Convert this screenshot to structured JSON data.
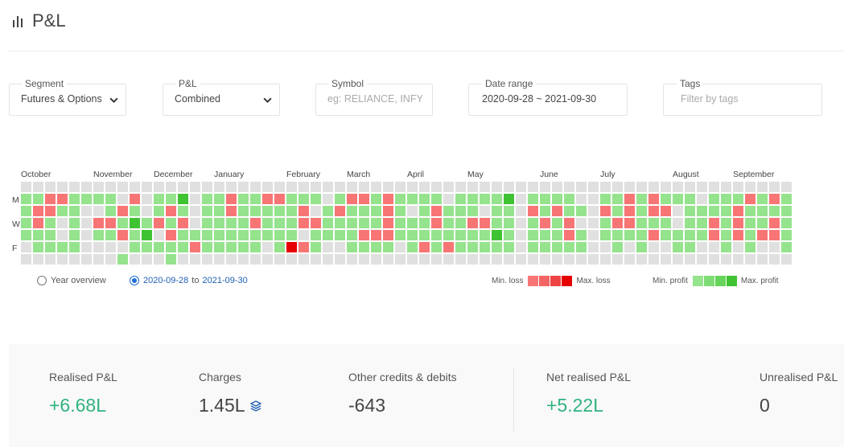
{
  "header": {
    "title": "P&L",
    "icon": "bar-chart-icon"
  },
  "filters": {
    "segment": {
      "label": "Segment",
      "value": "Futures & Options"
    },
    "pnl": {
      "label": "P&L",
      "value": "Combined"
    },
    "symbol": {
      "label": "Symbol",
      "placeholder": "eg: RELIANCE, INFY"
    },
    "date_range": {
      "label": "Date range",
      "value": "2020-09-28 ~ 2021-09-30"
    },
    "tags": {
      "label": "Tags",
      "placeholder": "Filter by tags"
    }
  },
  "calendar": {
    "months": [
      "October",
      "November",
      "December",
      "January",
      "February",
      "March",
      "April",
      "May",
      "June",
      "July",
      "August",
      "September"
    ],
    "day_labels": {
      "mon": "M",
      "wed": "W",
      "fri": "F"
    }
  },
  "view_options": {
    "year_overview": "Year overview",
    "range_start": "2020-09-28",
    "range_to": "to",
    "range_end": "2021-09-30"
  },
  "legend": {
    "min_loss": "Min. loss",
    "max_loss": "Max. loss",
    "min_profit": "Min. profit",
    "max_profit": "Max. profit",
    "loss_colors": [
      "#f87575",
      "#f36464",
      "#ee4444",
      "#e60000"
    ],
    "profit_colors": [
      "#95e38d",
      "#7fdc74",
      "#66d45a",
      "#3fc332"
    ]
  },
  "colors": {
    "positive": "#2fb37f",
    "empty_cell": "#e0e0e0",
    "accent": "#1e6fd9"
  },
  "summary": {
    "realised": {
      "label": "Realised P&L",
      "value": "+6.68L"
    },
    "charges": {
      "label": "Charges",
      "value": "1.45L",
      "icon": "layers-icon"
    },
    "other": {
      "label": "Other credits & debits",
      "value": "-643"
    },
    "net": {
      "label": "Net realised P&L",
      "value": "+5.22L"
    },
    "unrealised": {
      "label": "Unrealised P&L",
      "value": "0"
    }
  },
  "heatmap_rows": [
    "0000000000000000000000000000000000000000000000000000000000000000",
    "1122111102011401121122111012212111101111401111001121211101112121",
    "1221100121012101121111120121112101211101102121102121220111121111",
    "1210102214121201111211122111112111211221101212001221110112121121",
    "1110101121402111111111101111222111111114101112101111211112121221",
    "0111100001111121111101321001111012121111101111100101001100101001",
    "0000000010001000000000000000000000000000000000000000000000000000"
  ]
}
